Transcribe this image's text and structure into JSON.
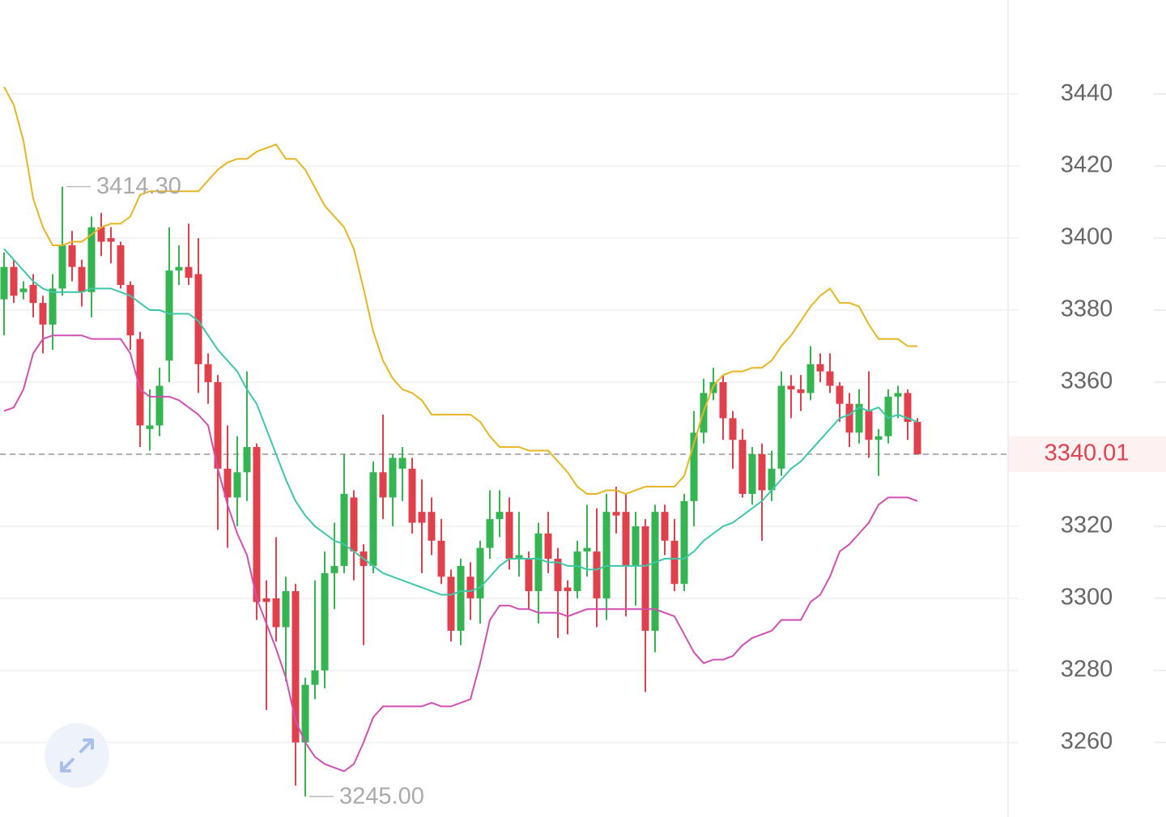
{
  "chart_data": {
    "type": "candlestick",
    "open": [
      3383,
      3392,
      3385,
      3387,
      3382,
      3376,
      3386,
      3398,
      3392,
      3385,
      3403,
      3400,
      3398,
      3387,
      3372,
      3347,
      3348,
      3366,
      3391,
      3392,
      3390,
      3365,
      3360,
      3336,
      3328,
      3335,
      3342,
      3300,
      3300,
      3292,
      3302,
      3260,
      3276,
      3280,
      3307,
      3309,
      3328,
      3313,
      3309,
      3335,
      3328,
      3336,
      3336,
      3324,
      3324,
      3316,
      3306,
      3291,
      3306,
      3300,
      3314,
      3322,
      3324,
      3311,
      3311,
      3302,
      3318,
      3311,
      3303,
      3302,
      3313,
      3313,
      3300,
      3324,
      3324,
      3309,
      3320,
      3291,
      3324,
      3316,
      3304,
      3327,
      3346,
      3357,
      3360,
      3350,
      3344,
      3329,
      3340,
      3330,
      3336,
      3359,
      3358,
      3357,
      3365,
      3363,
      3359,
      3354,
      3346,
      3352,
      3344,
      3345,
      3356,
      3357,
      3349
    ],
    "high": [
      3396,
      3394,
      3388,
      3390,
      3384,
      3390,
      3414.3,
      3402,
      3394,
      3406,
      3407,
      3403,
      3399,
      3388,
      3374,
      3358,
      3364,
      3403,
      3398,
      3404,
      3400,
      3368,
      3362,
      3348,
      3345,
      3363,
      3343,
      3305,
      3317,
      3306,
      3304,
      3278,
      3305,
      3313,
      3321,
      3340,
      3330,
      3315,
      3338,
      3351,
      3340,
      3342,
      3339,
      3333,
      3328,
      3322,
      3308,
      3311,
      3310,
      3316,
      3330,
      3330,
      3328,
      3324,
      3313,
      3321,
      3324,
      3314,
      3305,
      3316,
      3326,
      3325,
      3329,
      3331,
      3329,
      3324,
      3322,
      3326,
      3326,
      3322,
      3329,
      3352,
      3361,
      3364,
      3362,
      3352,
      3347,
      3342,
      3343,
      3341,
      3363,
      3362,
      3362,
      3370,
      3368,
      3368,
      3360,
      3357,
      3358,
      3363,
      3347,
      3358,
      3359,
      3358,
      3350
    ],
    "low": [
      3373,
      3382,
      3383,
      3378,
      3368,
      3369,
      3384,
      3388,
      3381,
      3378,
      3395,
      3393,
      3386,
      3369,
      3342,
      3341,
      3345,
      3360,
      3387,
      3387,
      3357,
      3354,
      3319,
      3314,
      3320,
      3327,
      3294,
      3269,
      3288,
      3277,
      3248,
      3245,
      3272,
      3275,
      3297,
      3307,
      3305,
      3287,
      3307,
      3322,
      3320,
      3327,
      3318,
      3307,
      3312,
      3304,
      3288,
      3287,
      3294,
      3293,
      3311,
      3317,
      3308,
      3306,
      3297,
      3293,
      3307,
      3289,
      3290,
      3300,
      3306,
      3292,
      3294,
      3318,
      3295,
      3298,
      3274,
      3285,
      3312,
      3302,
      3302,
      3320,
      3343,
      3355,
      3344,
      3336,
      3328,
      3326,
      3316,
      3327,
      3334,
      3350,
      3352,
      3355,
      3360,
      3357,
      3349,
      3342,
      3343,
      3339,
      3334,
      3343,
      3350,
      3344,
      3340
    ],
    "close": [
      3392,
      3384,
      3386,
      3382,
      3376,
      3386,
      3398,
      3392,
      3385,
      3403,
      3399,
      3399,
      3387,
      3373,
      3348,
      3348,
      3359,
      3391,
      3392,
      3389,
      3365,
      3360,
      3336,
      3328,
      3335,
      3342,
      3299,
      3299,
      3292,
      3302,
      3260,
      3276,
      3280,
      3307,
      3309,
      3329,
      3313,
      3309,
      3335,
      3328,
      3339,
      3339,
      3321,
      3321,
      3316,
      3306,
      3291,
      3309,
      3300,
      3314,
      3322,
      3324,
      3311,
      3312,
      3302,
      3318,
      3311,
      3302,
      3302,
      3313,
      3314,
      3300,
      3324,
      3323,
      3309,
      3320,
      3291,
      3324,
      3316,
      3304,
      3327,
      3346,
      3357,
      3360,
      3350,
      3344,
      3329,
      3340,
      3330,
      3336,
      3359,
      3358,
      3357,
      3365,
      3363,
      3359,
      3354,
      3346,
      3354,
      3344,
      3345,
      3356,
      3357,
      3349,
      3340.01
    ],
    "up_color": "#34b552",
    "down_color": "#e0404c",
    "bands": [
      {
        "color": "#e8b522",
        "values": [
          3442,
          3437,
          3427,
          3411,
          3403,
          3398,
          3398,
          3399,
          3399,
          3401,
          3403,
          3404,
          3404,
          3406,
          3412,
          3413,
          3413,
          3413,
          3413,
          3413,
          3413,
          3416,
          3419,
          3421,
          3422,
          3422,
          3424,
          3425,
          3426,
          3422,
          3422,
          3419,
          3414,
          3409,
          3406,
          3403,
          3397,
          3386,
          3374,
          3366,
          3361,
          3358,
          3357,
          3355,
          3351,
          3351,
          3351,
          3351,
          3351,
          3349,
          3345,
          3342,
          3342,
          3342,
          3341,
          3341,
          3341,
          3338,
          3335,
          3331,
          3329,
          3329,
          3330,
          3330,
          3329,
          3330,
          3331,
          3331,
          3331,
          3331,
          3334,
          3343,
          3352,
          3359,
          3362,
          3363,
          3363,
          3364,
          3364,
          3366,
          3370,
          3373,
          3377,
          3381,
          3384,
          3386,
          3382,
          3382,
          3381,
          3376,
          3372,
          3372,
          3372,
          3370,
          3370
        ]
      },
      {
        "color": "#3cc8a8",
        "values": [
          3397,
          3394,
          3391,
          3388,
          3386,
          3385,
          3385,
          3385,
          3385,
          3386,
          3386,
          3386,
          3385,
          3384,
          3382,
          3380,
          3380,
          3379,
          3379,
          3379,
          3377,
          3373,
          3369,
          3366,
          3363,
          3358,
          3354,
          3347,
          3340,
          3333,
          3327,
          3323,
          3320,
          3318,
          3316,
          3315,
          3313,
          3311,
          3309,
          3307,
          3306,
          3305,
          3304,
          3303,
          3302,
          3301,
          3301,
          3302,
          3302,
          3303,
          3306,
          3309,
          3311,
          3311,
          3311,
          3311,
          3310,
          3310,
          3309,
          3309,
          3308,
          3308,
          3309,
          3309,
          3309,
          3309,
          3309,
          3310,
          3311,
          3311,
          3311,
          3313,
          3316,
          3318,
          3320,
          3321,
          3323,
          3325,
          3327,
          3330,
          3333,
          3336,
          3338,
          3341,
          3344,
          3347,
          3350,
          3351,
          3353,
          3352,
          3353,
          3350,
          3351,
          3350,
          3349
        ]
      },
      {
        "color": "#d24fb4",
        "values": [
          3352,
          3353,
          3358,
          3368,
          3372,
          3373,
          3373,
          3373,
          3373,
          3372,
          3372,
          3372,
          3372,
          3368,
          3358,
          3356,
          3356,
          3356,
          3355,
          3353,
          3351,
          3348,
          3336,
          3326,
          3318,
          3312,
          3300,
          3293,
          3286,
          3278,
          3266,
          3260,
          3256,
          3254,
          3253,
          3252,
          3254,
          3260,
          3267,
          3270,
          3270,
          3270,
          3270,
          3270,
          3271,
          3270,
          3270,
          3271,
          3272,
          3282,
          3294,
          3298,
          3298,
          3297,
          3297,
          3296,
          3296,
          3296,
          3295,
          3296,
          3297,
          3297,
          3297,
          3297,
          3297,
          3297,
          3297,
          3297,
          3296,
          3295,
          3290,
          3285,
          3282,
          3283,
          3283,
          3284,
          3287,
          3289,
          3290,
          3291,
          3294,
          3294,
          3294,
          3299,
          3301,
          3306,
          3313,
          3315,
          3318,
          3321,
          3326,
          3328,
          3328,
          3328,
          3327
        ]
      }
    ],
    "max_label": "3414.30",
    "min_label": "3245.00",
    "last_price": 3340.01,
    "last_price_color": "#e0434f",
    "ylim": [
      3239.3,
      3466.1
    ],
    "yticks": [
      3260,
      3280,
      3300,
      3320,
      3340,
      3360,
      3380,
      3400,
      3420,
      3440
    ],
    "grid": true
  }
}
